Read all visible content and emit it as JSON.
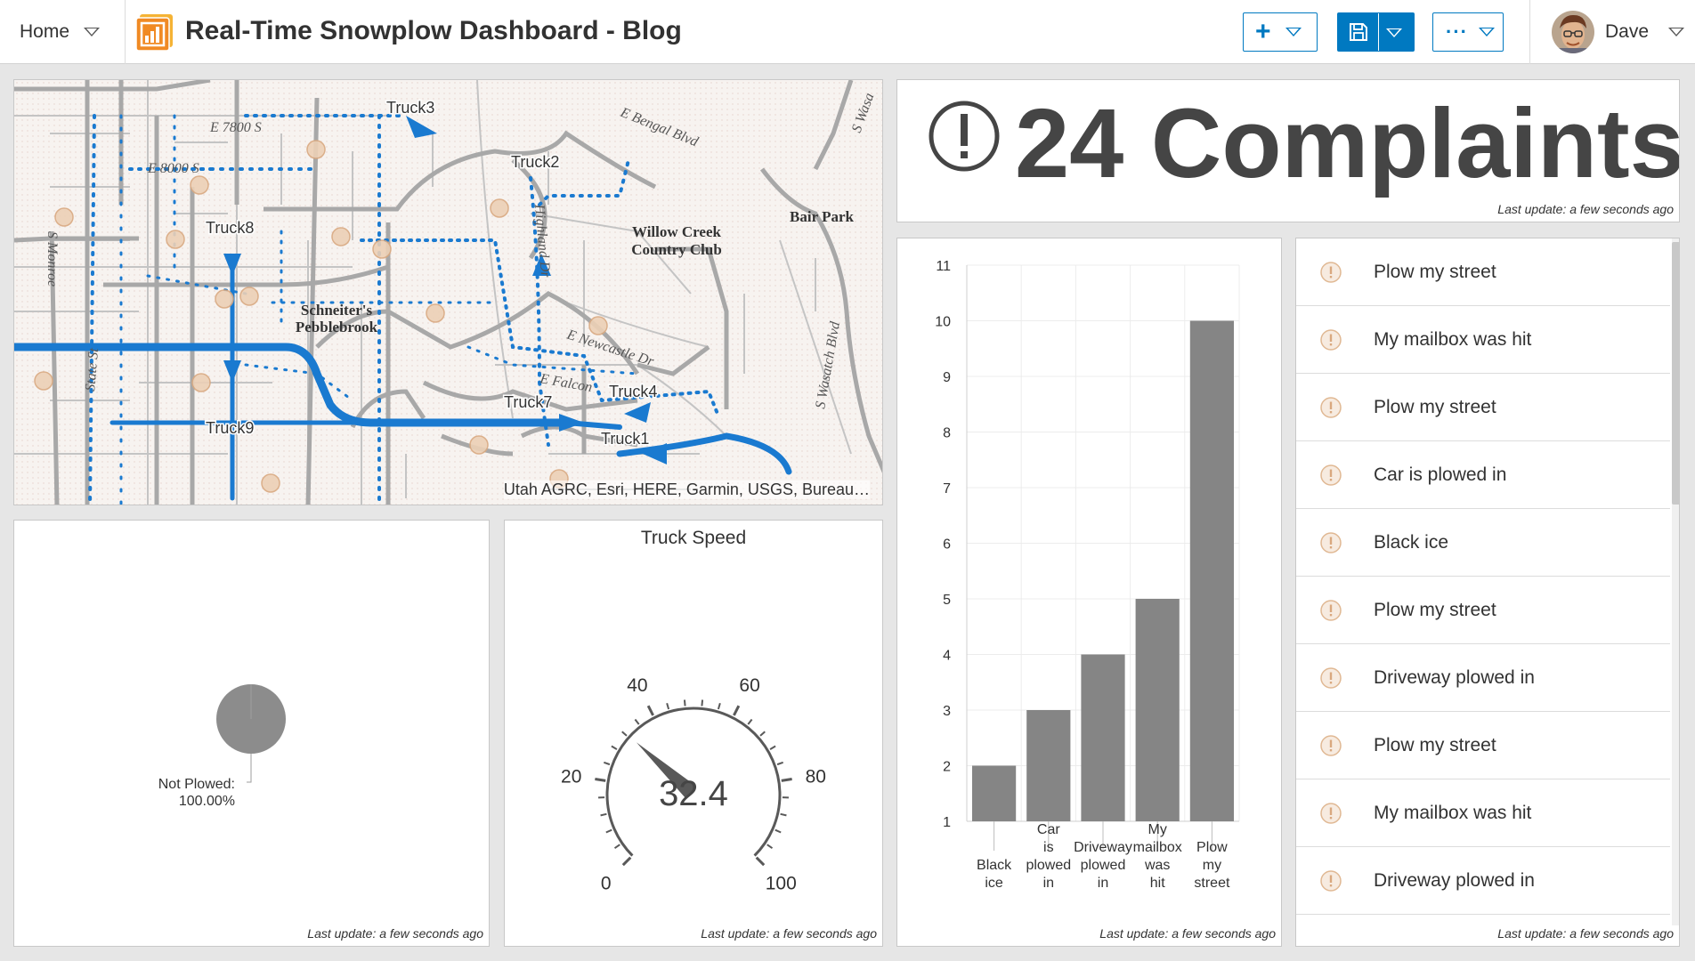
{
  "header": {
    "home_label": "Home",
    "title": "Real-Time Snowplow Dashboard - Blog",
    "add_icon": "plus-icon",
    "save_icon": "save-icon",
    "more_icon": "more-icon",
    "user_name": "Dave"
  },
  "map": {
    "attribution": "Utah AGRC, Esri, HERE, Garmin, USGS, Bureau…",
    "street_labels": [
      "E 7800 S",
      "E 8000 S",
      "E Bengal Blvd",
      "E Newcastle Dr",
      "E Falcon",
      "S Wasatch Blvd",
      "S Wasa",
      "Highland Dr",
      "S Monroe",
      "State St"
    ],
    "place_labels": [
      "Willow Creek",
      "Country Club",
      "Bair Park",
      "Schneiter's",
      "Pebblebrook"
    ],
    "trucks": [
      "Truck1",
      "Truck2",
      "Truck3",
      "Truck4",
      "Truck7",
      "Truck8",
      "Truck9"
    ],
    "colors": {
      "route": "#1a7ad0",
      "road": "#a8a8a8",
      "complaint": "#e8c7a8"
    }
  },
  "indicator": {
    "value_text": "24 Complaints",
    "last_update": "Last update: a few seconds ago"
  },
  "pie": {
    "chart_data": {
      "type": "pie",
      "slices": [
        {
          "label": "Not Plowed:",
          "value_label": "100.00%",
          "value": 100
        }
      ]
    },
    "color": "#8c8c8c",
    "last_update": "Last update: a few seconds ago"
  },
  "gauge": {
    "title": "Truck Speed",
    "chart_data": {
      "type": "gauge",
      "min": 0,
      "max": 100,
      "value": 32.4,
      "tick_labels": [
        "0",
        "20",
        "40",
        "60",
        "80",
        "100"
      ]
    },
    "value_text": "32.4",
    "last_update": "Last update: a few seconds ago"
  },
  "bar": {
    "chart_data": {
      "type": "bar",
      "categories": [
        [
          "Black",
          "ice"
        ],
        [
          "Car",
          "is",
          "plowed",
          "in"
        ],
        [
          "Driveway",
          "plowed",
          "in"
        ],
        [
          "My",
          "mailbox",
          "was",
          "hit"
        ],
        [
          "Plow",
          "my",
          "street"
        ]
      ],
      "values": [
        2,
        3,
        4,
        5,
        10
      ],
      "ylim": [
        1,
        11
      ],
      "yticks": [
        1,
        2,
        3,
        4,
        5,
        6,
        7,
        8,
        9,
        10,
        11
      ]
    },
    "color": "#858585",
    "last_update": "Last update: a few seconds ago"
  },
  "list": {
    "items": [
      "Plow my street",
      "My mailbox was hit",
      "Plow my street",
      "Car is plowed in",
      "Black ice",
      "Plow my street",
      "Driveway plowed in",
      "Plow my street",
      "My mailbox was hit",
      "Driveway plowed in"
    ],
    "item_icon": "warning-circle-icon",
    "last_update": "Last update: a few seconds ago"
  }
}
